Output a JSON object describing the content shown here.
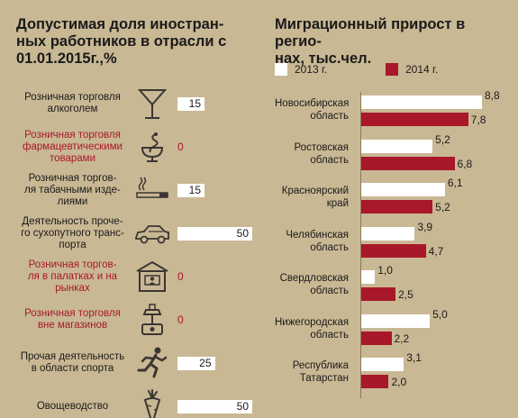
{
  "left_title": "Допустимая доля иностран-\nных работников в отрасли с\n01.01.2015г.,%",
  "right_title": "Миграционный прирост в регио-\nнах, тыс.чел.",
  "colors": {
    "bg": "#c9b894",
    "white_bar": "#ffffff",
    "red": "#a8182a",
    "icon": "#3a3632"
  },
  "chart_data": [
    {
      "type": "bar",
      "orientation": "horizontal",
      "title": "Допустимая доля иностранных работников в отрасли с 01.01.2015г.,%",
      "xlim": [
        0,
        50
      ],
      "categories": [
        "Розничная торговля алкоголем",
        "Розничная торговля фармацевтическими товарами",
        "Розничная торговля табачными изделиями",
        "Деятельность прочего сухопутного транспорта",
        "Розничная торговля в палатках и на рынках",
        "Розничная торговля вне магазинов",
        "Прочая деятельность в области спорта",
        "Овощеводство"
      ],
      "values": [
        15,
        0,
        15,
        50,
        0,
        0,
        25,
        50
      ]
    },
    {
      "type": "bar",
      "orientation": "horizontal",
      "title": "Миграционный прирост в регионах, тыс.чел.",
      "categories": [
        "Новосибирская область",
        "Ростовская область",
        "Красноярский край",
        "Челябинская область",
        "Свердловская область",
        "Нижегородская область",
        "Республика Татарстан"
      ],
      "series": [
        {
          "name": "2013 г.",
          "values": [
            8.8,
            5.2,
            6.1,
            3.9,
            1.0,
            5.0,
            3.1
          ]
        },
        {
          "name": "2014 г.",
          "values": [
            7.8,
            6.8,
            5.2,
            4.7,
            2.5,
            2.2,
            2.0
          ]
        }
      ],
      "xlim": [
        0,
        8.8
      ],
      "legend": "top"
    }
  ],
  "industries": [
    {
      "label": "Розничная торговля\nалкоголем",
      "value_text": "15",
      "highlight": false,
      "icon": "cocktail-glass-icon"
    },
    {
      "label": "Розничная торговля\nфармацевтическими\nтоварами",
      "value_text": "0",
      "highlight": true,
      "icon": "pharmacy-snake-bowl-icon"
    },
    {
      "label": "Розничная торгов-\nля табачными изде-\nлиями",
      "value_text": "15",
      "highlight": false,
      "icon": "cigarette-icon"
    },
    {
      "label": "Деятельность проче-\nго сухопутного транс-\nпорта",
      "value_text": "50",
      "highlight": false,
      "icon": "car-icon"
    },
    {
      "label": "Розничная торгов-\nля в палатках и на\nрынках",
      "value_text": "0",
      "highlight": true,
      "icon": "market-stall-icon"
    },
    {
      "label": "Розничная торговля\nвне магазинов",
      "value_text": "0",
      "highlight": true,
      "icon": "scale-weight-icon"
    },
    {
      "label": "Прочая деятельность\nв области спорта",
      "value_text": "25",
      "highlight": false,
      "icon": "runner-icon"
    },
    {
      "label": "Овощеводство",
      "value_text": "50",
      "highlight": false,
      "icon": "carrot-icon"
    }
  ],
  "legend": [
    {
      "label": "2013 г.",
      "color": "#ffffff"
    },
    {
      "label": "2014 г.",
      "color": "#a8182a"
    }
  ],
  "regions": [
    {
      "label": "Новосибирская\nобласть",
      "v2013_text": "8,8",
      "v2014_text": "7,8"
    },
    {
      "label": "Ростовская\nобласть",
      "v2013_text": "5,2",
      "v2014_text": "6,8"
    },
    {
      "label": "Красноярский\nкрай",
      "v2013_text": "6,1",
      "v2014_text": "5,2"
    },
    {
      "label": "Челябинская\nобласть",
      "v2013_text": "3,9",
      "v2014_text": "4,7"
    },
    {
      "label": "Свердловская\nобласть",
      "v2013_text": "1,0",
      "v2014_text": "2,5"
    },
    {
      "label": "Нижегородская\nобласть",
      "v2013_text": "5,0",
      "v2014_text": "2,2"
    },
    {
      "label": "Республика\nТатарстан",
      "v2013_text": "3,1",
      "v2014_text": "2,0"
    }
  ]
}
